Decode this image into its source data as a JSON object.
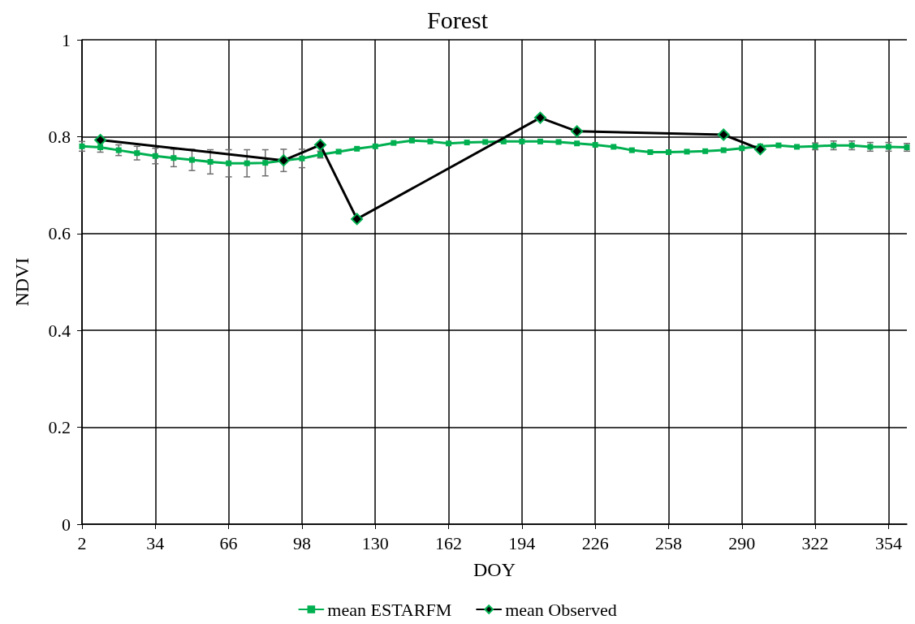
{
  "chart_data": {
    "type": "line",
    "title": "Forest",
    "xlabel": "DOY",
    "ylabel": "NDVI",
    "xlim": [
      2,
      362
    ],
    "xticks": [
      2,
      34,
      66,
      98,
      130,
      162,
      194,
      226,
      258,
      290,
      322,
      354
    ],
    "ylim": [
      0,
      1
    ],
    "yticks": [
      0,
      0.2,
      0.4,
      0.6,
      0.8,
      1
    ],
    "grid": true,
    "legend": "bottom",
    "series": [
      {
        "name": "mean ESTARFM",
        "color": "#00b050",
        "marker": "square",
        "x": [
          2,
          10,
          18,
          26,
          34,
          42,
          50,
          58,
          66,
          74,
          82,
          90,
          98,
          106,
          114,
          122,
          130,
          138,
          146,
          154,
          162,
          170,
          178,
          186,
          194,
          202,
          210,
          218,
          226,
          234,
          242,
          250,
          258,
          266,
          274,
          282,
          290,
          298,
          306,
          314,
          322,
          330,
          338,
          346,
          354,
          362
        ],
        "values": [
          0.78,
          0.778,
          0.772,
          0.766,
          0.76,
          0.756,
          0.752,
          0.748,
          0.745,
          0.745,
          0.746,
          0.751,
          0.755,
          0.763,
          0.769,
          0.775,
          0.78,
          0.787,
          0.792,
          0.79,
          0.786,
          0.788,
          0.789,
          0.79,
          0.79,
          0.79,
          0.789,
          0.786,
          0.783,
          0.779,
          0.772,
          0.768,
          0.768,
          0.769,
          0.77,
          0.772,
          0.776,
          0.78,
          0.782,
          0.779,
          0.78,
          0.782,
          0.782,
          0.779,
          0.779,
          0.778
        ],
        "errors": [
          0.01,
          0.01,
          0.011,
          0.014,
          0.016,
          0.018,
          0.022,
          0.025,
          0.028,
          0.028,
          0.027,
          0.023,
          0.019,
          0.007,
          null,
          null,
          null,
          null,
          null,
          null,
          null,
          null,
          null,
          null,
          null,
          null,
          null,
          null,
          null,
          null,
          null,
          null,
          null,
          null,
          null,
          null,
          null,
          null,
          null,
          null,
          0.007,
          0.009,
          0.009,
          0.009,
          0.009,
          0.008
        ]
      },
      {
        "name": "mean Observed",
        "color": "#000000",
        "marker": "diamond",
        "x": [
          10,
          90,
          106,
          122,
          202,
          218,
          282,
          298
        ],
        "values": [
          0.793,
          0.751,
          0.783,
          0.63,
          0.839,
          0.811,
          0.804,
          0.774
        ]
      }
    ]
  }
}
